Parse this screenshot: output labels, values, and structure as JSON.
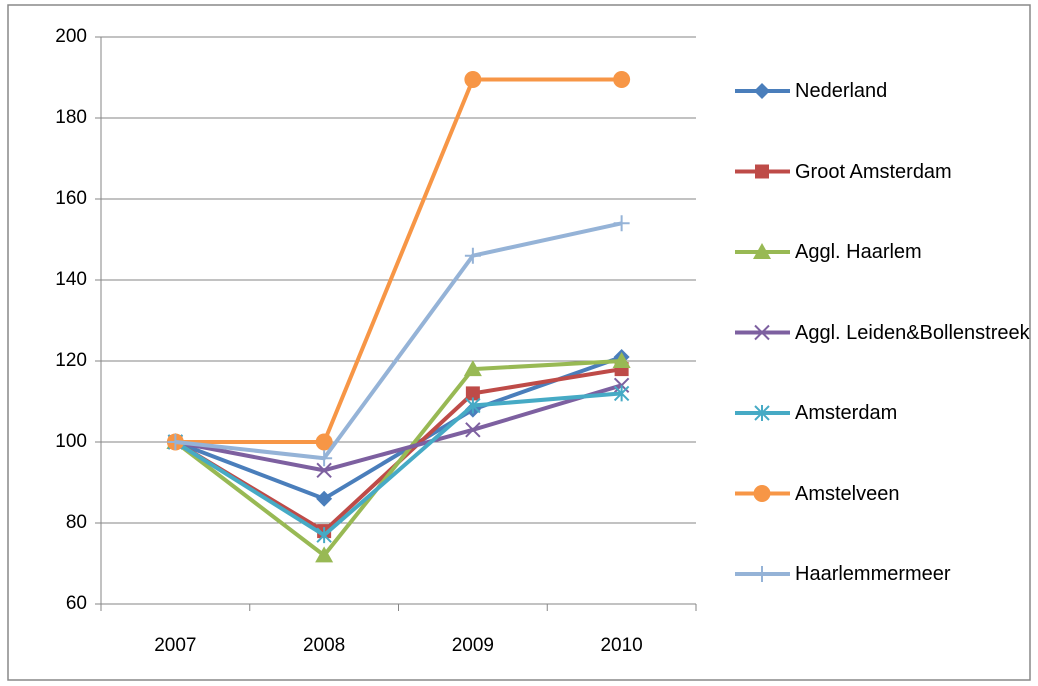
{
  "chart_data": {
    "type": "line",
    "categories": [
      "2007",
      "2008",
      "2009",
      "2010"
    ],
    "ylim": [
      60,
      200
    ],
    "yticks": [
      60,
      80,
      100,
      120,
      140,
      160,
      180,
      200
    ],
    "grid": true,
    "legend": "right",
    "series": [
      {
        "name": "Nederland",
        "color": "#4a7ebb",
        "marker": "diamond",
        "values": [
          100,
          86,
          108,
          121
        ]
      },
      {
        "name": "Groot Amsterdam",
        "color": "#be4b48",
        "marker": "square",
        "values": [
          100,
          78,
          112,
          118
        ]
      },
      {
        "name": "Aggl. Haarlem",
        "color": "#98b954",
        "marker": "triangle",
        "values": [
          100,
          72,
          118,
          120
        ]
      },
      {
        "name": "Aggl. Leiden&Bollenstreek",
        "color": "#7d60a0",
        "marker": "x",
        "values": [
          100,
          93,
          103,
          114
        ]
      },
      {
        "name": "Amsterdam",
        "color": "#46aac5",
        "marker": "star",
        "values": [
          100,
          77,
          109,
          112
        ]
      },
      {
        "name": "Amstelveen",
        "color": "#f79646",
        "marker": "circle",
        "values": [
          100,
          100,
          189.5,
          189.5
        ]
      },
      {
        "name": "Haarlemmermeer",
        "color": "#95b3d7",
        "marker": "plus",
        "values": [
          100,
          96,
          146,
          154
        ]
      }
    ]
  }
}
